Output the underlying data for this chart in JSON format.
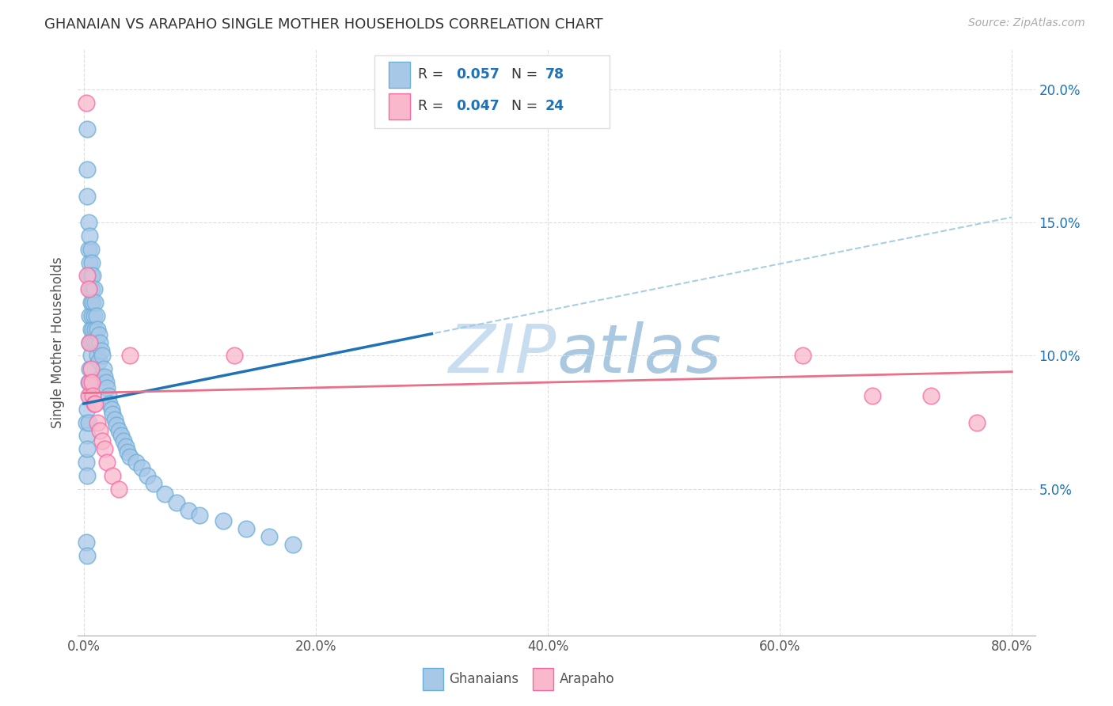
{
  "title": "GHANAIAN VS ARAPAHO SINGLE MOTHER HOUSEHOLDS CORRELATION CHART",
  "source": "Source: ZipAtlas.com",
  "ylabel": "Single Mother Households",
  "xlim": [
    -0.005,
    0.82
  ],
  "ylim": [
    -0.005,
    0.215
  ],
  "ytick_vals": [
    0.05,
    0.1,
    0.15,
    0.2
  ],
  "xtick_vals": [
    0.0,
    0.2,
    0.4,
    0.6,
    0.8
  ],
  "R_ghanaian": 0.057,
  "N_ghanaian": 78,
  "R_arapaho": 0.047,
  "N_arapaho": 24,
  "ghanaian_fill": "#a8c8e8",
  "ghanaian_edge": "#6baed6",
  "arapaho_fill": "#f9b8cc",
  "arapaho_edge": "#f768a1",
  "trend_blue_solid": "#2171b5",
  "trend_blue_dashed": "#9ecae1",
  "trend_pink_solid": "#e8708a",
  "watermark_color": "#c8ddf0",
  "legend_box_color": "#dddddd",
  "right_tick_color": "#2171b5",
  "title_color": "#333333",
  "source_color": "#aaaaaa",
  "ylabel_color": "#555555",
  "xlabel_color": "#555555",
  "grid_color": "#dddddd",
  "ghanaian_x": [
    0.002,
    0.002,
    0.003,
    0.003,
    0.003,
    0.003,
    0.003,
    0.003,
    0.003,
    0.004,
    0.004,
    0.004,
    0.004,
    0.004,
    0.005,
    0.005,
    0.005,
    0.005,
    0.005,
    0.005,
    0.005,
    0.006,
    0.006,
    0.006,
    0.006,
    0.006,
    0.007,
    0.007,
    0.007,
    0.007,
    0.008,
    0.008,
    0.008,
    0.009,
    0.009,
    0.009,
    0.01,
    0.01,
    0.011,
    0.011,
    0.012,
    0.012,
    0.013,
    0.013,
    0.014,
    0.015,
    0.015,
    0.016,
    0.017,
    0.018,
    0.019,
    0.02,
    0.021,
    0.022,
    0.024,
    0.025,
    0.027,
    0.028,
    0.03,
    0.032,
    0.034,
    0.036,
    0.038,
    0.04,
    0.045,
    0.05,
    0.055,
    0.06,
    0.07,
    0.08,
    0.09,
    0.1,
    0.12,
    0.14,
    0.16,
    0.18,
    0.002,
    0.003
  ],
  "ghanaian_y": [
    0.075,
    0.06,
    0.185,
    0.17,
    0.16,
    0.08,
    0.07,
    0.065,
    0.055,
    0.15,
    0.14,
    0.13,
    0.09,
    0.075,
    0.145,
    0.135,
    0.125,
    0.115,
    0.105,
    0.095,
    0.085,
    0.14,
    0.13,
    0.12,
    0.11,
    0.1,
    0.135,
    0.125,
    0.115,
    0.105,
    0.13,
    0.12,
    0.11,
    0.125,
    0.115,
    0.105,
    0.12,
    0.11,
    0.115,
    0.105,
    0.11,
    0.1,
    0.108,
    0.098,
    0.105,
    0.102,
    0.092,
    0.1,
    0.095,
    0.092,
    0.09,
    0.088,
    0.085,
    0.082,
    0.08,
    0.078,
    0.076,
    0.074,
    0.072,
    0.07,
    0.068,
    0.066,
    0.064,
    0.062,
    0.06,
    0.058,
    0.055,
    0.052,
    0.048,
    0.045,
    0.042,
    0.04,
    0.038,
    0.035,
    0.032,
    0.029,
    0.03,
    0.025
  ],
  "arapaho_x": [
    0.002,
    0.003,
    0.004,
    0.004,
    0.005,
    0.005,
    0.006,
    0.007,
    0.008,
    0.009,
    0.01,
    0.012,
    0.014,
    0.016,
    0.018,
    0.02,
    0.025,
    0.03,
    0.04,
    0.13,
    0.62,
    0.68,
    0.73,
    0.77
  ],
  "arapaho_y": [
    0.195,
    0.13,
    0.125,
    0.085,
    0.105,
    0.09,
    0.095,
    0.09,
    0.085,
    0.082,
    0.082,
    0.075,
    0.072,
    0.068,
    0.065,
    0.06,
    0.055,
    0.05,
    0.1,
    0.1,
    0.1,
    0.085,
    0.085,
    0.075
  ],
  "trend_g_x0": 0.0,
  "trend_g_y0": 0.082,
  "trend_g_x1": 0.8,
  "trend_g_y1": 0.152,
  "trend_a_x0": 0.0,
  "trend_a_y0": 0.086,
  "trend_a_x1": 0.8,
  "trend_a_y1": 0.094,
  "trend_g_solid_x1": 0.3
}
